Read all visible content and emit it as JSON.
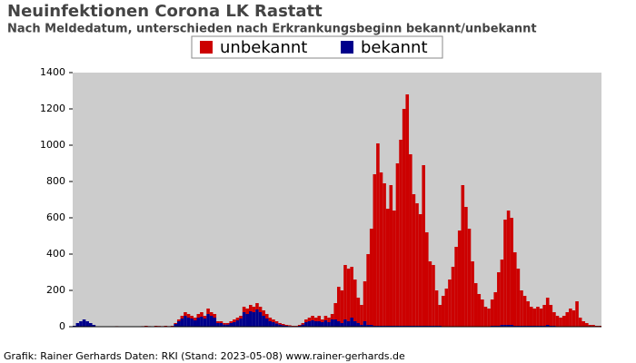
{
  "chart_data": {
    "type": "stacked_bar",
    "title": "Neuinfektionen Corona LK Rastatt",
    "subtitle": "Nach Meldedatum, unterschieden nach Erkrankungsbeginn bekannt/unbekannt",
    "footer": "Grafik: Rainer Gerhards Daten: RKI (Stand: 2023-05-08) www.rainer-gerhards.de",
    "ylim": [
      0,
      1400
    ],
    "yticks": [
      0,
      200,
      400,
      600,
      800,
      1000,
      1200,
      1400
    ],
    "grid": false,
    "legend": "top",
    "series": [
      {
        "name": "unbekannt",
        "color": "#cc0000",
        "values": [
          0,
          0,
          0,
          0,
          0,
          0,
          0,
          0,
          0,
          2,
          0,
          0,
          0,
          3,
          0,
          0,
          2,
          0,
          0,
          0,
          2,
          3,
          5,
          3,
          2,
          5,
          4,
          3,
          5,
          3,
          5,
          5,
          10,
          15,
          20,
          20,
          15,
          15,
          20,
          25,
          15,
          30,
          20,
          20,
          10,
          10,
          8,
          8,
          10,
          15,
          15,
          15,
          30,
          30,
          35,
          30,
          35,
          30,
          30,
          25,
          20,
          15,
          12,
          8,
          7,
          5,
          4,
          2,
          2,
          5,
          8,
          15,
          20,
          25,
          20,
          30,
          15,
          25,
          25,
          30,
          90,
          190,
          180,
          300,
          290,
          280,
          230,
          140,
          110,
          220,
          390,
          530,
          835,
          1005,
          845,
          785,
          645,
          775,
          635,
          895,
          1025,
          1195,
          1275,
          945,
          725,
          675,
          615,
          885,
          515,
          355,
          335,
          195,
          115,
          170,
          210,
          260,
          330,
          440,
          530,
          780,
          660,
          540,
          360,
          240,
          180,
          150,
          110,
          100,
          145,
          185,
          295,
          360,
          580,
          630,
          590,
          405,
          315,
          195,
          165,
          135,
          105,
          95,
          105,
          95,
          115,
          150,
          115,
          75,
          60,
          50,
          60,
          80,
          100,
          90,
          140,
          50,
          30,
          20,
          10,
          10,
          5,
          5
        ]
      },
      {
        "name": "bekannt",
        "color": "#00008b",
        "values": [
          5,
          20,
          30,
          40,
          30,
          20,
          10,
          0,
          0,
          0,
          0,
          0,
          0,
          0,
          0,
          0,
          0,
          0,
          0,
          0,
          0,
          0,
          0,
          0,
          0,
          0,
          0,
          0,
          0,
          0,
          0,
          15,
          30,
          45,
          60,
          50,
          45,
          35,
          50,
          55,
          45,
          70,
          60,
          50,
          20,
          20,
          12,
          12,
          20,
          25,
          35,
          45,
          80,
          70,
          85,
          80,
          95,
          80,
          60,
          45,
          30,
          25,
          18,
          12,
          8,
          5,
          4,
          3,
          3,
          5,
          12,
          25,
          30,
          35,
          30,
          30,
          25,
          35,
          25,
          40,
          40,
          30,
          20,
          40,
          30,
          50,
          30,
          20,
          10,
          30,
          10,
          10,
          5,
          5,
          5,
          5,
          5,
          5,
          5,
          5,
          5,
          5,
          5,
          5,
          5,
          5,
          5,
          5,
          5,
          5,
          5,
          5,
          5,
          0,
          0,
          0,
          0,
          0,
          0,
          0,
          0,
          0,
          0,
          0,
          0,
          0,
          0,
          0,
          5,
          5,
          5,
          10,
          10,
          10,
          10,
          5,
          5,
          5,
          5,
          5,
          5,
          5,
          5,
          5,
          5,
          10,
          5,
          5,
          0,
          0,
          0,
          0,
          0,
          0,
          0,
          0,
          0,
          0,
          0,
          0,
          0,
          0
        ]
      }
    ]
  }
}
